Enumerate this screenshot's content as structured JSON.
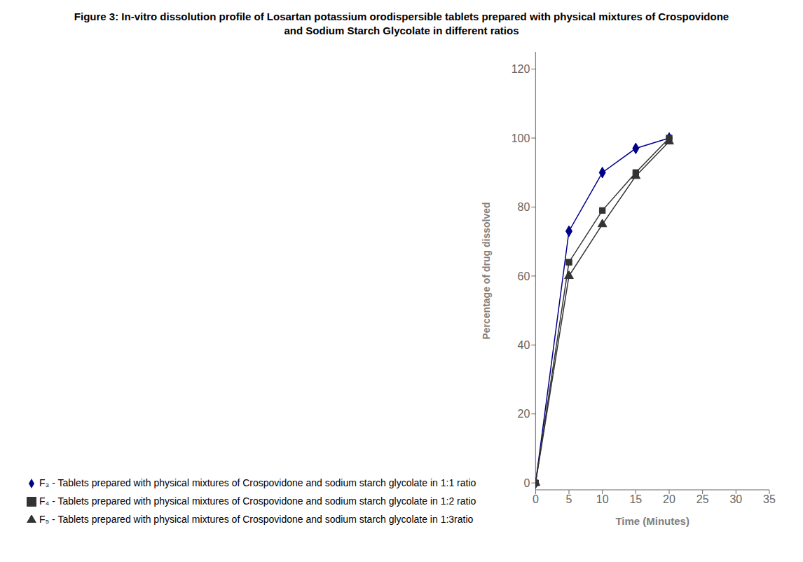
{
  "chart_data": {
    "type": "line",
    "title": "Figure 3: In-vitro dissolution profile of Losartan potassium orodispersible tablets prepared with physical mixtures of Crospovidone",
    "subtitle": "and Sodium Starch Glycolate in different ratios",
    "x_label": "Time (Minutes)",
    "y_label": "Percentage of drug dissolved",
    "x": [
      0,
      5,
      10,
      15,
      20
    ],
    "xlim": [
      0,
      35
    ],
    "ylim": [
      -2,
      125
    ],
    "xticks": [
      0,
      5,
      10,
      15,
      20,
      25,
      30,
      35
    ],
    "yticks": [
      0,
      20,
      40,
      60,
      80,
      100,
      120
    ],
    "grid": false,
    "series": [
      {
        "name": "F₃ -  Tablets prepared with physical mixtures of Crospovidone and sodium starch glycolate  in 1:1 ratio",
        "color": "#00008B",
        "marker": "diamond",
        "values": [
          0,
          73,
          90,
          97,
          100
        ]
      },
      {
        "name": "F₄ -  Tablets prepared with physical mixtures of Crospovidone and sodium starch glycolate in 1:2 ratio",
        "color": "#333333",
        "marker": "square",
        "values": [
          0,
          64,
          79,
          90,
          100
        ]
      },
      {
        "name": "F₅ -  Tablets prepared with physical mixtures of Crospovidone and sodium starch glycolate in 1:3ratio",
        "color": "#333333",
        "marker": "triangle",
        "values": [
          0,
          60,
          75,
          89,
          99
        ]
      }
    ]
  }
}
